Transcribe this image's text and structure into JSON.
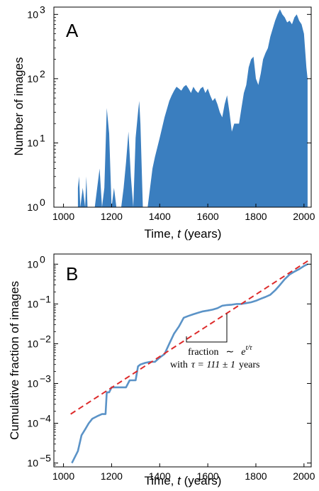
{
  "colors": {
    "series": "#3a7ebf",
    "line": "#5b93c7",
    "fit": "#dd2b2b",
    "axis": "#000000"
  },
  "chart_data": [
    {
      "panel": "A",
      "type": "bar",
      "ylog": true,
      "xlim": [
        960,
        2030
      ],
      "ylim": [
        1,
        1300
      ],
      "xticks": [
        1000,
        1200,
        1400,
        1600,
        1800,
        2000
      ],
      "xtick_labels": [
        "1000",
        "1200",
        "1400",
        "1600",
        "1800",
        "2000"
      ],
      "ytick_labels": [
        "10",
        "10",
        "10",
        "10"
      ],
      "ytick_exps": [
        "0",
        "1",
        "2",
        "3"
      ],
      "xlabel_pre": "Time, ",
      "xlabel_var": "t",
      "xlabel_post": " (years)",
      "ylabel": "Number of images",
      "x": [
        1060,
        1065,
        1070,
        1080,
        1090,
        1095,
        1100,
        1108,
        1120,
        1130,
        1140,
        1150,
        1160,
        1170,
        1180,
        1190,
        1200,
        1210,
        1220,
        1230,
        1240,
        1250,
        1260,
        1270,
        1280,
        1290,
        1300,
        1310,
        1315,
        1320,
        1330,
        1340,
        1350,
        1360,
        1370,
        1380,
        1400,
        1420,
        1440,
        1450,
        1460,
        1470,
        1480,
        1490,
        1500,
        1510,
        1520,
        1530,
        1540,
        1550,
        1560,
        1570,
        1580,
        1590,
        1600,
        1610,
        1620,
        1630,
        1640,
        1650,
        1660,
        1670,
        1680,
        1690,
        1700,
        1710,
        1720,
        1730,
        1740,
        1750,
        1760,
        1770,
        1780,
        1790,
        1800,
        1810,
        1820,
        1830,
        1840,
        1850,
        1860,
        1870,
        1880,
        1890,
        1900,
        1910,
        1920,
        1930,
        1940,
        1950,
        1960,
        1970,
        1980,
        1990,
        2000,
        2010,
        2015
      ],
      "y": [
        2,
        3,
        1,
        2,
        1,
        3,
        1,
        1,
        1,
        1,
        2,
        4,
        1,
        2,
        35,
        14,
        1,
        2,
        1,
        1,
        1,
        2,
        5,
        15,
        3,
        1,
        12,
        30,
        45,
        20,
        1,
        1,
        1,
        2,
        4,
        6,
        12,
        25,
        45,
        55,
        65,
        75,
        70,
        65,
        75,
        80,
        70,
        60,
        75,
        65,
        60,
        70,
        75,
        60,
        70,
        55,
        45,
        50,
        40,
        30,
        25,
        40,
        55,
        30,
        15,
        20,
        20,
        20,
        35,
        60,
        80,
        150,
        200,
        220,
        100,
        80,
        120,
        200,
        250,
        300,
        450,
        600,
        800,
        1000,
        1200,
        1000,
        900,
        750,
        800,
        700,
        900,
        1000,
        800,
        700,
        500,
        150,
        100
      ]
    },
    {
      "panel": "B",
      "type": "line",
      "ylog": true,
      "xlim": [
        960,
        2030
      ],
      "ylim": [
        8e-06,
        1.8
      ],
      "xticks": [
        1000,
        1200,
        1400,
        1600,
        1800,
        2000
      ],
      "xtick_labels": [
        "1000",
        "1200",
        "1400",
        "1600",
        "1800",
        "2000"
      ],
      "ytick_labels": [
        "10",
        "10",
        "10",
        "10",
        "10",
        "10"
      ],
      "ytick_exps": [
        "−5",
        "−4",
        "−3",
        "−2",
        "−1",
        "0"
      ],
      "xlabel_pre": "Time, ",
      "xlabel_var": "t",
      "xlabel_post": " (years)",
      "ylabel": "Cumulative fraction of images",
      "series": [
        {
          "x": [
            1035,
            1060,
            1075,
            1090,
            1105,
            1120,
            1140,
            1160,
            1175,
            1180,
            1185,
            1190,
            1200,
            1230,
            1260,
            1275,
            1290,
            1300,
            1310,
            1320,
            1340,
            1360,
            1380,
            1400,
            1420,
            1440,
            1460,
            1480,
            1500,
            1520,
            1540,
            1560,
            1580,
            1600,
            1620,
            1640,
            1660,
            1680,
            1700,
            1720,
            1740,
            1760,
            1780,
            1800,
            1820,
            1840,
            1860,
            1880,
            1900,
            1920,
            1940,
            1960,
            1980,
            2000,
            2015
          ],
          "y": [
            1e-05,
            2e-05,
            5e-05,
            7e-05,
            0.0001,
            0.00013,
            0.00015,
            0.00017,
            0.00017,
            0.0006,
            0.0006,
            0.0006,
            0.0008,
            0.0008,
            0.0008,
            0.0012,
            0.0012,
            0.0012,
            0.0027,
            0.003,
            0.0033,
            0.0035,
            0.0035,
            0.0045,
            0.0055,
            0.01,
            0.018,
            0.027,
            0.045,
            0.05,
            0.055,
            0.06,
            0.065,
            0.068,
            0.072,
            0.078,
            0.09,
            0.094,
            0.096,
            0.1,
            0.1,
            0.105,
            0.11,
            0.12,
            0.135,
            0.15,
            0.17,
            0.22,
            0.3,
            0.42,
            0.55,
            0.65,
            0.75,
            0.9,
            1.0
          ]
        },
        {
          "x": [
            1030,
            2020
          ],
          "y": [
            0.00017,
            1.25
          ]
        }
      ],
      "annotation_line1": "fraction",
      "annotation_sym": "∼",
      "annotation_exp": "t/τ",
      "annotation_line2_pre": "with",
      "annotation_line2_eq": "τ = 111 ± 1",
      "annotation_line2_post": "years"
    }
  ]
}
